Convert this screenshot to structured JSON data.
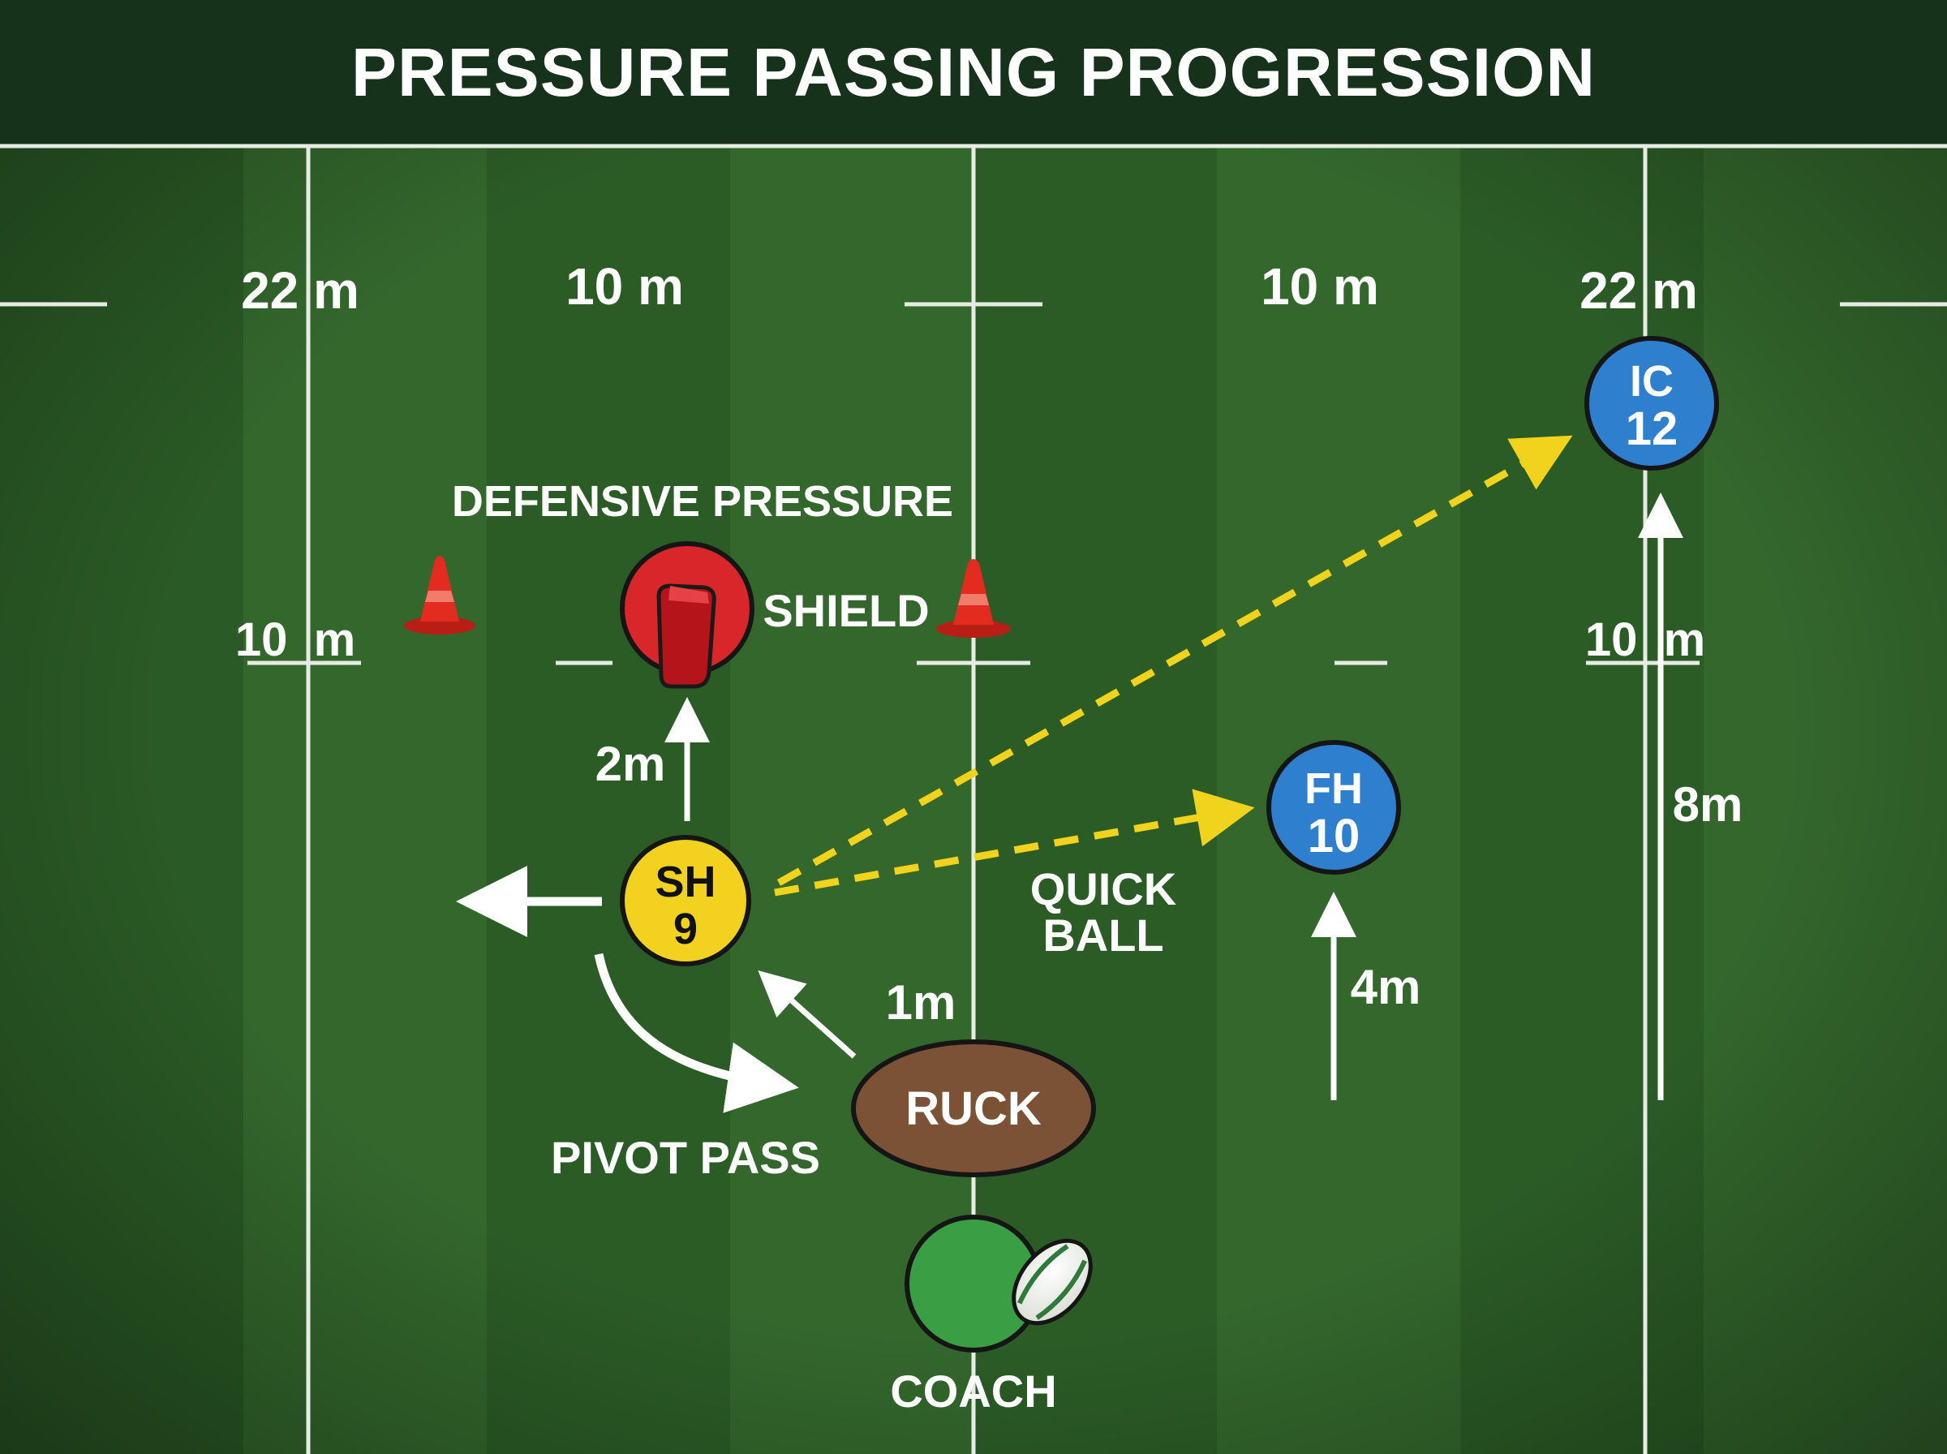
{
  "title": "PRESSURE PASSING PROGRESSION",
  "colors": {
    "grass_dark": "#2b5c26",
    "grass_light": "#33672c",
    "title_bar": "#16321a",
    "line": "#e6ece4",
    "scrum_half": "#f2d21e",
    "back": "#2f7fcf",
    "defender": "#d9262b",
    "ruck": "#7b5235",
    "coach": "#3a9e44",
    "pass": "#f1d21c",
    "cone": "#de2a1e"
  },
  "pitch_labels": {
    "left_22": "22 m",
    "left_10": "10 m",
    "right_10": "10 m",
    "right_22": "22 m",
    "left_10_lower": "10  m",
    "right_10_lower": "10  m"
  },
  "players": {
    "scrum_half": {
      "role": "SH",
      "number": "9"
    },
    "fly_half": {
      "role": "FH",
      "number": "10"
    },
    "inside_centre": {
      "role": "IC",
      "number": "12"
    }
  },
  "labels": {
    "defensive_pressure": "DEFENSIVE PRESSURE",
    "shield": "SHIELD",
    "quick_ball_1": "QUICK",
    "quick_ball_2": "BALL",
    "pivot_pass": "PIVOT PASS",
    "ruck": "RUCK",
    "coach": "COACH",
    "dist_2m": "2m",
    "dist_1m": "1m",
    "dist_4m": "4m",
    "dist_8m": "8m"
  },
  "icons": [
    "cone-icon",
    "tackle-shield-icon",
    "rugby-ball-icon",
    "arrow-icon"
  ]
}
